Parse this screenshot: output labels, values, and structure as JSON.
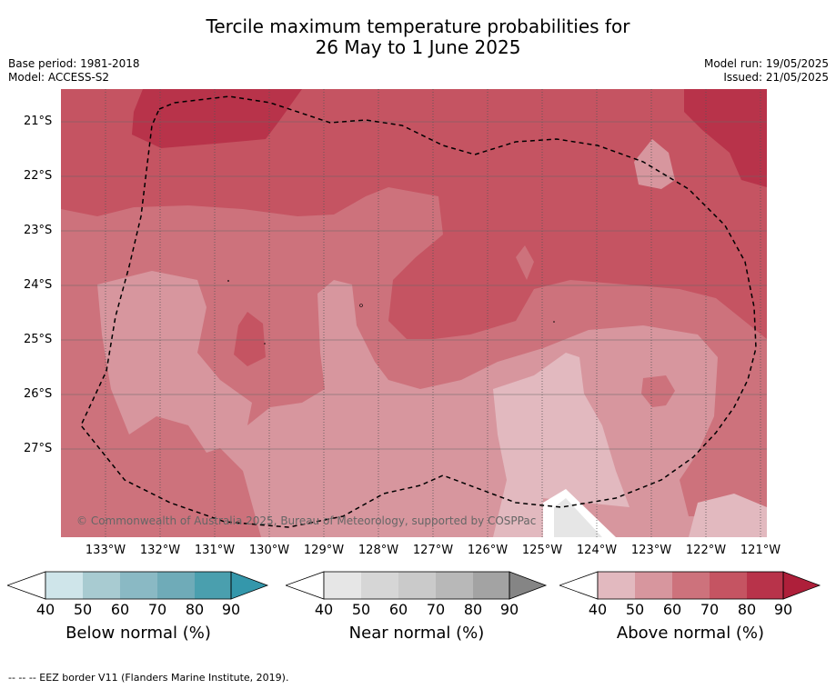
{
  "title_line1": "Tercile maximum temperature probabilities for",
  "title_line2": "26 May to 1 June 2025",
  "base_period": "Base period: 1981-2018",
  "model": "Model: ACCESS-S2",
  "model_run": "Model run: 19/05/2025",
  "issued": "Issued: 21/05/2025",
  "copyright": "© Commonwealth of Australia 2025, Bureau of Meteorology, supported by COSPPac",
  "footer": "-- -- -- EEZ border V11 (Flanders Marine Institute, 2019).",
  "lat_labels": [
    "21°S",
    "22°S",
    "23°S",
    "24°S",
    "25°S",
    "26°S",
    "27°S"
  ],
  "lon_labels": [
    "133°W",
    "132°W",
    "131°W",
    "130°W",
    "129°W",
    "128°W",
    "127°W",
    "126°W",
    "125°W",
    "124°W",
    "123°W",
    "122°W",
    "121°W"
  ],
  "legends": [
    {
      "title": "Below normal (%)",
      "colors": [
        "#cfe5ea",
        "#a8cbd1",
        "#8ab9c4",
        "#6fabb8",
        "#4a9fae",
        "#3497ab"
      ],
      "ticks": [
        "40",
        "50",
        "60",
        "70",
        "80",
        "90"
      ]
    },
    {
      "title": "Near normal (%)",
      "colors": [
        "#e6e6e6",
        "#d6d6d6",
        "#cacaca",
        "#b8b8b8",
        "#a3a3a3",
        "#858585"
      ],
      "ticks": [
        "40",
        "50",
        "60",
        "70",
        "80",
        "90"
      ]
    },
    {
      "title": "Above normal (%)",
      "colors": [
        "#e2b9bf",
        "#d7969e",
        "#cd727c",
        "#c55462",
        "#b8334a",
        "#ae1f3a"
      ],
      "ticks": [
        "40",
        "50",
        "60",
        "70",
        "80",
        "90"
      ]
    }
  ]
}
